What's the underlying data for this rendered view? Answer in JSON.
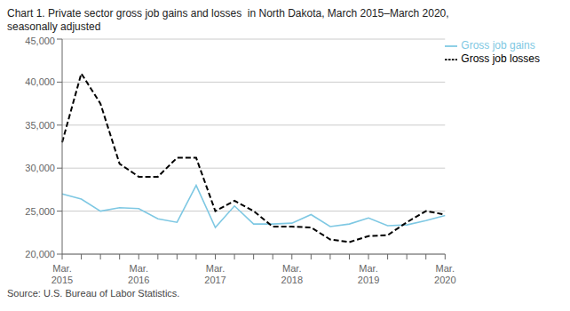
{
  "chart_data": {
    "type": "line",
    "title": "Chart 1. Private sector gross job gains and losses  in North Dakota, March 2015–March 2020,",
    "subtitle": "seasonally adjusted",
    "source": "Source: U.S. Bureau of Labor Statistics.",
    "categories": [
      "Mar.\n2015",
      null,
      null,
      null,
      "Mar.\n2016",
      null,
      null,
      null,
      "Mar.\n2017",
      null,
      null,
      null,
      "Mar.\n2018",
      null,
      null,
      null,
      "Mar.\n2019",
      null,
      null,
      null,
      "Mar.\n2020"
    ],
    "series": [
      {
        "name": "Gross job gains",
        "color": "#7ec8e3",
        "line_style": "solid",
        "values": [
          27000,
          26400,
          25000,
          25400,
          25300,
          24100,
          23700,
          28000,
          23100,
          25600,
          23500,
          23500,
          23600,
          24600,
          23200,
          23500,
          24200,
          23300,
          23400,
          23900,
          24500
        ]
      },
      {
        "name": "Gross job losses",
        "color": "#000000",
        "line_style": "dashed",
        "values": [
          33000,
          41000,
          37500,
          30500,
          29000,
          29000,
          31200,
          31200,
          25000,
          26200,
          25000,
          23200,
          23200,
          23100,
          21700,
          21400,
          22100,
          22200,
          23700,
          25000,
          24600
        ]
      }
    ],
    "ylim": [
      20000,
      45000
    ],
    "yticks": [
      {
        "value": 20000,
        "label": "20,000"
      },
      {
        "value": 25000,
        "label": "25,000"
      },
      {
        "value": 30000,
        "label": "30,000"
      },
      {
        "value": 35000,
        "label": "35,000"
      },
      {
        "value": 40000,
        "label": "40,000"
      },
      {
        "value": 45000,
        "label": "45,000"
      }
    ],
    "grid": true,
    "legend": "upper right"
  }
}
